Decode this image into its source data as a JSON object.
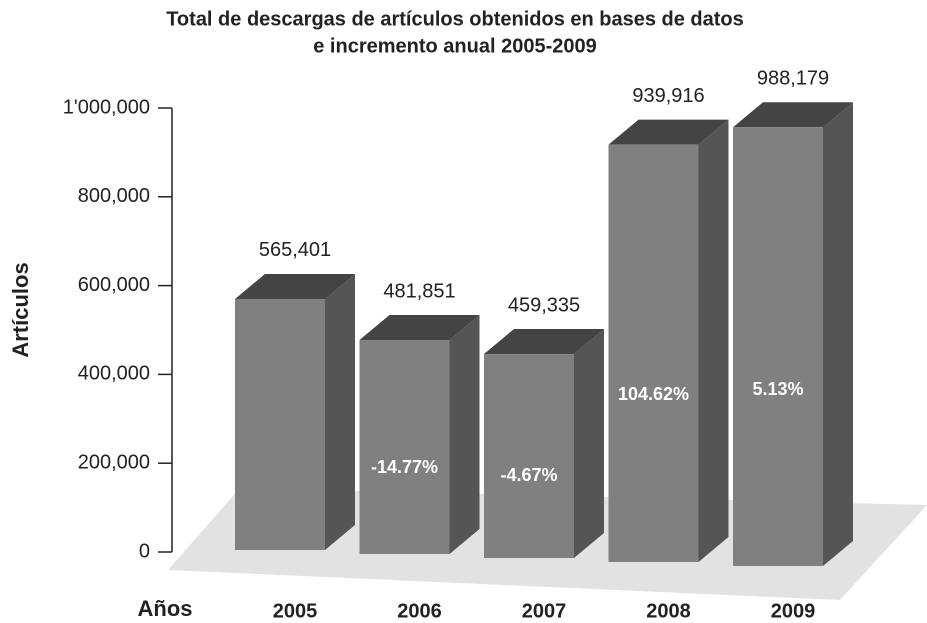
{
  "chart_data": {
    "type": "bar3d",
    "title": [
      "Total de descargas de artículos obtenidos en bases de datos",
      "e incremento anual 2005-2009"
    ],
    "y_label": "Artículos",
    "x_label": "Años",
    "categories": [
      "2005",
      "2006",
      "2007",
      "2008",
      "2009"
    ],
    "values": [
      565401,
      481851,
      459335,
      939916,
      988179
    ],
    "value_labels": [
      "565,401",
      "481,851",
      "459,335",
      "939,916",
      "988,179"
    ],
    "growth": [
      null,
      -14.77,
      -4.67,
      104.62,
      5.13
    ],
    "growth_labels": [
      null,
      "-14.77%",
      "-4.67%",
      "104.62%",
      "5.13%"
    ],
    "color": "#808080",
    "ylim": [
      0,
      1000000
    ],
    "yticks": [
      0,
      {
        "value": 200000,
        "label": "200,000"
      },
      {
        "value": 400000,
        "label": "400,000"
      },
      {
        "value": 600000,
        "label": "600,000"
      },
      {
        "value": 800000,
        "label": "800,000"
      },
      {
        "value": 1000000,
        "label": "1'000,000"
      }
    ]
  }
}
